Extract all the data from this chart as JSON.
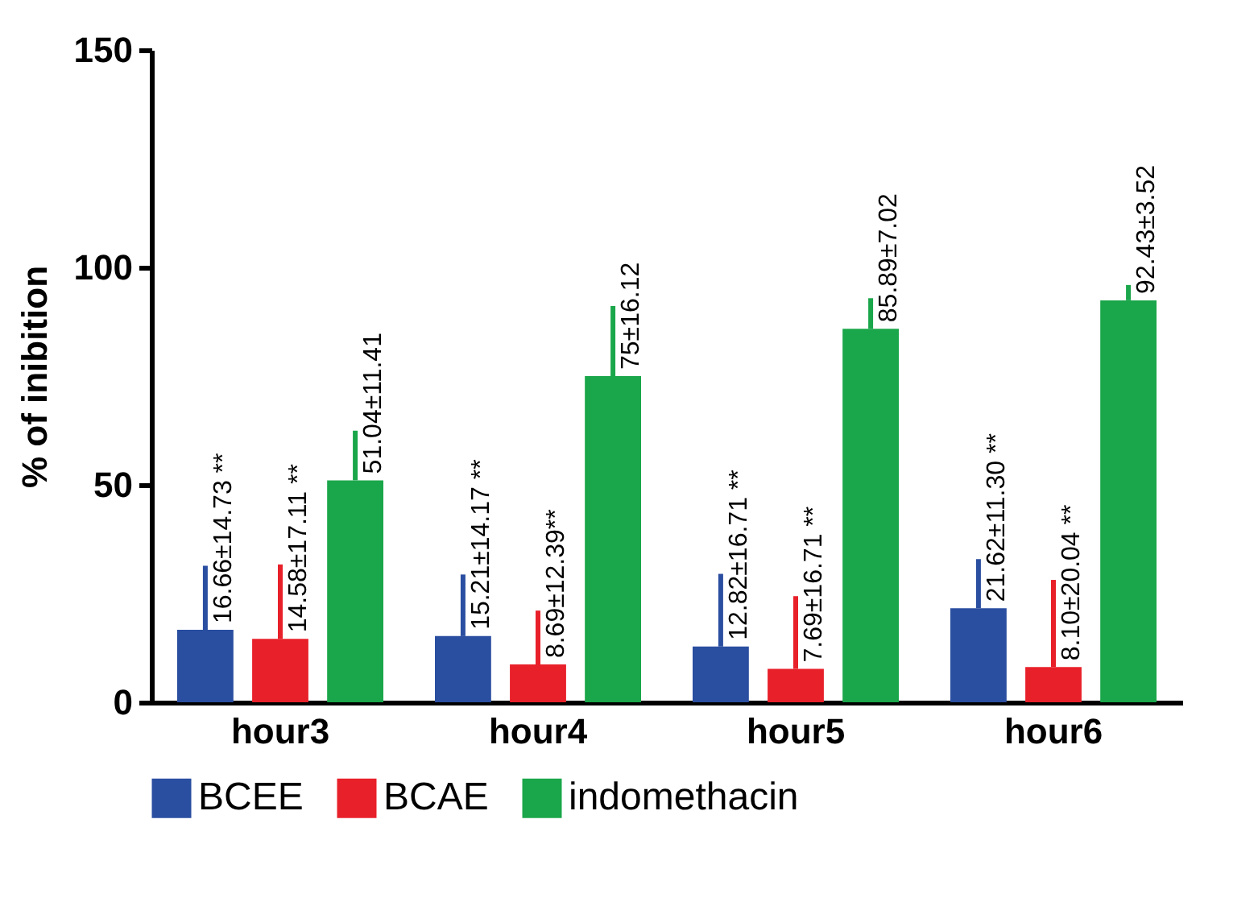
{
  "chart_data": {
    "type": "bar",
    "ylabel": "% of inibition",
    "categories": [
      "hour3",
      "hour4",
      "hour5",
      "hour6"
    ],
    "ylim": [
      0,
      150
    ],
    "yticks": [
      0,
      50,
      100,
      150
    ],
    "legend": "bottom",
    "series": [
      {
        "name": "BCEE",
        "color": "#2a4ea0",
        "values": [
          16.66,
          15.21,
          12.82,
          21.62
        ],
        "errors": [
          [
            16.66,
            31.39
          ],
          [
            15.21,
            29.38
          ],
          [
            12.82,
            29.53
          ],
          [
            21.62,
            32.92
          ]
        ],
        "value_labels": [
          "16.66±14.73 **",
          "15.21±14.17 **",
          "12.82±16.71 **",
          "21.62±11.30 **"
        ]
      },
      {
        "name": "BCAE",
        "color": "#e8202a",
        "values": [
          14.58,
          8.69,
          7.69,
          8.1
        ],
        "errors": [
          [
            14.58,
            31.69
          ],
          [
            8.69,
            21.08
          ],
          [
            7.69,
            24.4
          ],
          [
            8.1,
            28.14
          ]
        ],
        "value_labels": [
          "14.58±17.11 **",
          "8.69±12.39**",
          "7.69±16.71 **",
          "8.10±20.04 **"
        ]
      },
      {
        "name": "indomethacin",
        "color": "#1aa64a",
        "values": [
          51.04,
          75,
          85.89,
          92.43
        ],
        "errors": [
          [
            51.04,
            62.45
          ],
          [
            75,
            91.12
          ],
          [
            85.89,
            92.91
          ],
          [
            92.43,
            95.95
          ]
        ],
        "value_labels": [
          "51.04±11.41",
          "75±16.12",
          "85.89±7.02",
          "92.43±3.52"
        ]
      }
    ]
  }
}
